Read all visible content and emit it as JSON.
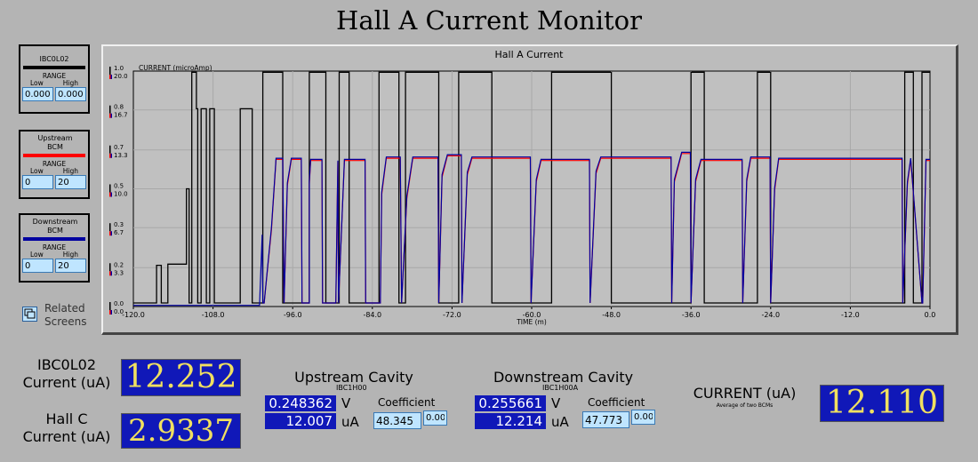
{
  "title": "Hall A Current Monitor",
  "bcm_panels": [
    {
      "name": "IBC0L02",
      "range_label": "RANGE",
      "low_label": "Low",
      "high_label": "High",
      "low": "0.000",
      "high": "0.000",
      "color": "#000000"
    },
    {
      "name": "Upstream BCM",
      "range_label": "RANGE",
      "low_label": "Low",
      "high_label": "High",
      "low": "0",
      "high": "20",
      "color": "#ff0000"
    },
    {
      "name": "Downstream BCM",
      "range_label": "RANGE",
      "low_label": "Low",
      "high_label": "High",
      "low": "0",
      "high": "20",
      "color": "#0000a0"
    }
  ],
  "related_screens": "Related Screens",
  "chart_data": {
    "type": "line",
    "title": "Hall A Current",
    "ylabel": "CURRENT (microAmp)",
    "xlabel": "TIME (m)",
    "xlim": [
      -120,
      0
    ],
    "x_ticks": [
      "-120.0",
      "-108.0",
      "-96.0",
      "-84.0",
      "-72.0",
      "-60.0",
      "-48.0",
      "-36.0",
      "-24.0",
      "-12.0",
      "0.0"
    ],
    "y_ticks_left": [
      "0.0",
      "0.2",
      "0.3",
      "0.5",
      "0.7",
      "0.8",
      "1.0"
    ],
    "y_ticks_right": [
      "0.0",
      "3.3",
      "6.7",
      "10.0",
      "13.3",
      "16.7",
      "20.0"
    ],
    "ylim_right": [
      0,
      20
    ],
    "grid": true,
    "series": [
      {
        "color": "#000000",
        "x": [
          -120,
          -116.5,
          -116.5,
          -115.8,
          -115.8,
          -114.8,
          -114.8,
          -112,
          -112,
          -111.6,
          -111.6,
          -111.2,
          -111.2,
          -110.5,
          -110.5,
          -110.3,
          -110.3,
          -109.8,
          -109.8,
          -109,
          -109,
          -108.5,
          -108.5,
          -107.8,
          -107.8,
          -103.9,
          -103.9,
          -102.1,
          -102.1,
          -100.5,
          -100.5,
          -97.5,
          -97.5,
          -93.5,
          -93.5,
          -91,
          -91,
          -89,
          -89,
          -87.5,
          -87.5,
          -83,
          -83,
          -80,
          -80,
          -79,
          -79,
          -74,
          -74,
          -71,
          -71,
          -66,
          -66,
          -57,
          -57,
          -48,
          -48,
          -36,
          -36,
          -34,
          -34,
          -26,
          -26,
          -24,
          -24,
          -3.8,
          -3.8,
          -2.5,
          -2.5,
          -1.2,
          -1.2,
          0
        ],
        "y": [
          0.3,
          0.3,
          3.5,
          3.5,
          0.3,
          0.3,
          3.6,
          3.6,
          10,
          10,
          0.3,
          0.3,
          19.9,
          19.9,
          16.8,
          16.8,
          0.3,
          0.3,
          16.8,
          16.8,
          0.3,
          0.3,
          16.8,
          16.8,
          0.3,
          0.3,
          16.8,
          16.8,
          0.3,
          0.3,
          19.9,
          19.9,
          0.3,
          0.3,
          19.9,
          19.9,
          0.3,
          0.3,
          19.9,
          19.9,
          0.3,
          0.3,
          19.9,
          19.9,
          0.3,
          0.3,
          19.9,
          19.9,
          0.3,
          0.3,
          19.9,
          19.9,
          0.3,
          0.3,
          19.9,
          19.9,
          0.3,
          0.3,
          19.9,
          19.9,
          0.3,
          0.3,
          19.9,
          19.9,
          0.3,
          0.3,
          19.9,
          19.9,
          0.3,
          0.3,
          19.9,
          19.9
        ]
      },
      {
        "color": "#ff0000",
        "x": [
          -100.5,
          -100.3,
          -99.2,
          -98.5,
          -97.5,
          -97.3,
          -96.8,
          -96.2,
          -94.7,
          -94.6,
          -93.5,
          -93.5,
          -93.3,
          -92.5,
          -91.6,
          -91.5,
          -89.5,
          -89.2,
          -89.1,
          -88.2,
          -85.1,
          -85,
          -82.8,
          -82.6,
          -81.9,
          -81.5,
          -79.8,
          -79.6,
          -78.8,
          -77.9,
          -74.1,
          -74,
          -73.5,
          -72.7,
          -70.6,
          -70.5,
          -69.7,
          -69,
          -60.2,
          -60.1,
          -59.3,
          -58.6,
          -51.3,
          -51.2,
          -50.3,
          -49.6,
          -39,
          -38.9,
          -38.5,
          -37.4,
          -36.1,
          -36,
          -35.3,
          -34.5,
          -28.3,
          -28.2,
          -27.6,
          -27,
          -24.1,
          -24,
          -23.4,
          -22.8,
          -4.2,
          -4.1,
          -3.4,
          -2.9,
          -1.2,
          -1.1,
          -0.6,
          0
        ],
        "y": [
          0.3,
          0.3,
          6.5,
          12.5,
          12.5,
          0.3,
          10.3,
          12.5,
          12.5,
          0.3,
          0.3,
          10.4,
          12.4,
          12.4,
          12.4,
          0.3,
          0.3,
          12.3,
          0.3,
          12.4,
          12.4,
          0.3,
          0.3,
          9.5,
          12.6,
          12.6,
          12.6,
          0.3,
          9.2,
          12.6,
          12.6,
          0.3,
          11,
          12.8,
          12.8,
          0.3,
          11.2,
          12.6,
          12.6,
          0.3,
          10.6,
          12.4,
          12.4,
          0.3,
          11.3,
          12.6,
          12.6,
          0.3,
          10.6,
          13,
          13,
          0.3,
          10.6,
          12.4,
          12.4,
          0.3,
          10.6,
          12.6,
          12.6,
          0.3,
          9.9,
          12.5,
          12.5,
          0.3,
          10.4,
          12.5,
          0.3,
          0.3,
          12.4,
          12.4
        ]
      },
      {
        "color": "#0000a0",
        "x": [
          -120,
          -101,
          -100.6,
          -100.5,
          -100.3,
          -99.2,
          -98.5,
          -97.5,
          -97.3,
          -96.8,
          -96.2,
          -94.7,
          -94.6,
          -93.5,
          -93.5,
          -93.3,
          -92.5,
          -91.6,
          -91.5,
          -89.5,
          -89.2,
          -89.1,
          -88.2,
          -85.1,
          -85,
          -82.8,
          -82.6,
          -81.9,
          -81.5,
          -79.8,
          -79.6,
          -78.8,
          -77.9,
          -74.1,
          -74,
          -73.5,
          -72.7,
          -70.6,
          -70.5,
          -69.7,
          -69,
          -60.2,
          -60.1,
          -59.3,
          -58.6,
          -51.3,
          -51.2,
          -50.3,
          -49.6,
          -39,
          -38.9,
          -38.5,
          -37.4,
          -36.1,
          -36,
          -35.3,
          -34.5,
          -28.3,
          -28.2,
          -27.6,
          -27,
          -24.1,
          -24,
          -23.4,
          -22.8,
          -4.2,
          -4.1,
          -3.4,
          -2.9,
          -1.2,
          -1.1,
          -0.6,
          0
        ],
        "y": [
          0.1,
          0.1,
          6.1,
          0.3,
          0.3,
          6.7,
          12.6,
          12.6,
          0.3,
          10.5,
          12.6,
          12.6,
          0.3,
          0.3,
          10.6,
          12.5,
          12.5,
          12.5,
          0.3,
          0.3,
          12.4,
          0.3,
          12.5,
          12.5,
          0.3,
          0.3,
          9.7,
          12.7,
          12.7,
          12.7,
          0.3,
          9.4,
          12.7,
          12.7,
          0.3,
          11.2,
          12.9,
          12.9,
          0.3,
          11.4,
          12.7,
          12.7,
          0.3,
          10.8,
          12.5,
          12.5,
          0.3,
          11.5,
          12.7,
          12.7,
          0.3,
          10.8,
          13.1,
          13.1,
          0.3,
          10.8,
          12.5,
          12.5,
          0.3,
          10.8,
          12.7,
          12.7,
          0.3,
          10.1,
          12.6,
          12.6,
          0.3,
          10.6,
          12.6,
          0.3,
          0.3,
          12.5,
          12.5
        ]
      }
    ]
  },
  "ibc0l02_label": "IBC0L02\nCurrent (uA)",
  "ibc0l02_value": "12.252",
  "hallc_label": "Hall C\nCurrent (uA)",
  "hallc_value": "2.9337",
  "upstream": {
    "title": "Upstream Cavity",
    "pv": "IBC1H00",
    "volts": "0.248362",
    "volts_unit": "V",
    "current": "12.007",
    "current_unit": "uA",
    "coef_label": "Coefficient",
    "coef": "48.345",
    "offset": "0.00"
  },
  "downstream": {
    "title": "Downstream Cavity",
    "pv": "IBC1H00A",
    "volts": "0.255661",
    "volts_unit": "V",
    "current": "12.214",
    "current_unit": "uA",
    "coef_label": "Coefficient",
    "coef": "47.773",
    "offset": "0.00"
  },
  "avg": {
    "label": "CURRENT (uA)",
    "sub": "Average of two BCMs",
    "value": "12.110"
  }
}
